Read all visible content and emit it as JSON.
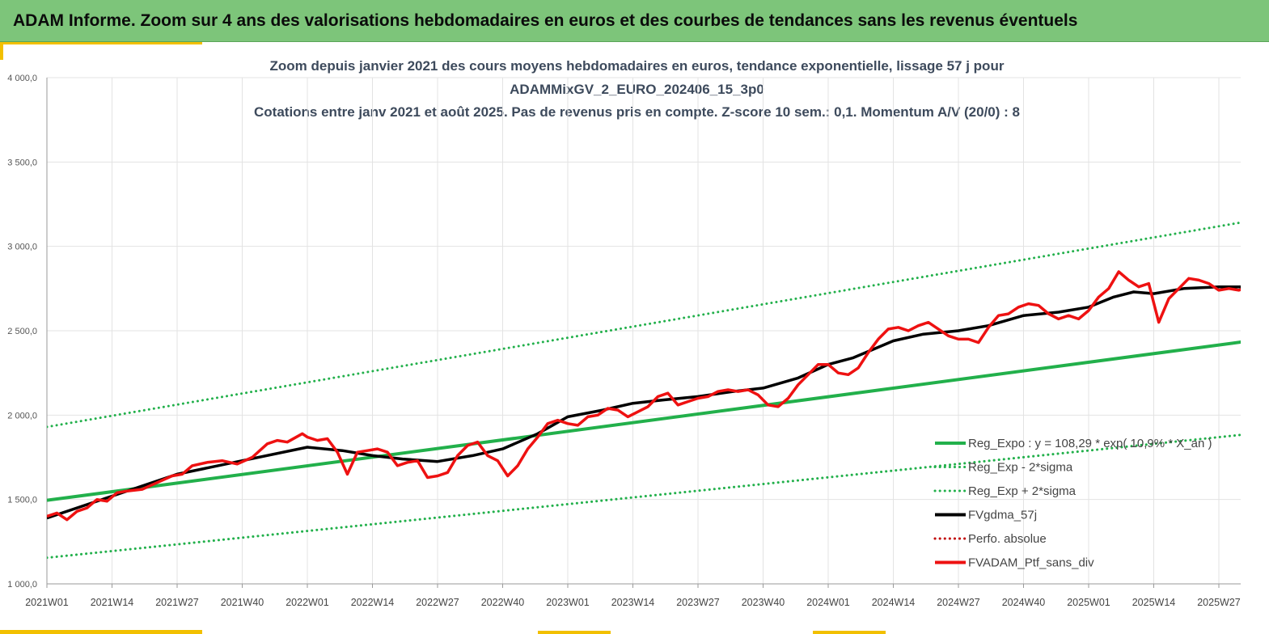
{
  "banner": {
    "title": "ADAM Informe. Zoom sur 4 ans des valorisations hebdomadaires en euros et des courbes de tendances sans les revenus éventuels",
    "color": "#7dc57a"
  },
  "chart_data": {
    "type": "line",
    "title_lines": [
      "Zoom depuis janvier 2021 des cours moyens hebdomadaires  en euros, tendance exponentielle, lissage 57 j pour",
      "ADAMMixGV_2_EURO_202406_15_3p0",
      "Cotations  entre janv 2021 et août 2025. Pas de revenus pris en compte. Z-score 10 sem.: 0,1. Momentum A/V (20/0) : 8"
    ],
    "xlabel": "",
    "ylabel": "",
    "ylim": [
      1000,
      4000
    ],
    "y_ticks": [
      "1 000,0",
      "1 500,0",
      "2 000,0",
      "2 500,0",
      "3 000,0",
      "3 500,0",
      "4 000,0"
    ],
    "x_tick_labels": [
      "2021W01",
      "2021W14",
      "2021W27",
      "2021W40",
      "2022W01",
      "2022W14",
      "2022W27",
      "2022W40",
      "2023W01",
      "2023W14",
      "2023W27",
      "2023W40",
      "2024W01",
      "2024W14",
      "2024W27",
      "2024W40",
      "2025W01",
      "2025W14",
      "2025W27"
    ],
    "grid": true,
    "legend_position": "bottom-right",
    "series": [
      {
        "name": "Reg_Expo : y = 108,29 * exp( 10,9% * X_an )",
        "color": "#22b04b",
        "style": "solid",
        "x": [
          "2021W01",
          "2025W37"
        ],
        "values": [
          1495,
          2455
        ]
      },
      {
        "name": "Reg_Exp - 2*sigma",
        "color": "#22b04b",
        "style": "dotted",
        "x": [
          "2021W01",
          "2025W37"
        ],
        "values": [
          1155,
          1900
        ]
      },
      {
        "name": "Reg_Exp + 2*sigma",
        "color": "#22b04b",
        "style": "dotted",
        "x": [
          "2021W01",
          "2025W37"
        ],
        "values": [
          1930,
          3170
        ]
      },
      {
        "name": "FVgdma_57j",
        "color": "#000000",
        "style": "solid",
        "x": [
          "2021W01",
          "2021W14",
          "2021W27",
          "2021W40",
          "2022W01",
          "2022W08",
          "2022W14",
          "2022W20",
          "2022W27",
          "2022W34",
          "2022W40",
          "2022W47",
          "2023W01",
          "2023W08",
          "2023W14",
          "2023W20",
          "2023W27",
          "2023W34",
          "2023W40",
          "2023W47",
          "2024W01",
          "2024W06",
          "2024W10",
          "2024W14",
          "2024W20",
          "2024W27",
          "2024W33",
          "2024W40",
          "2024W47",
          "2025W01",
          "2025W06",
          "2025W10",
          "2025W14",
          "2025W20",
          "2025W27",
          "2025W37"
        ],
        "values": [
          1390,
          1520,
          1650,
          1730,
          1810,
          1790,
          1760,
          1740,
          1725,
          1760,
          1800,
          1890,
          1990,
          2030,
          2070,
          2090,
          2110,
          2140,
          2160,
          2220,
          2300,
          2340,
          2390,
          2440,
          2480,
          2500,
          2530,
          2590,
          2610,
          2640,
          2700,
          2730,
          2720,
          2750,
          2760,
          2760
        ]
      },
      {
        "name": "Perfo. absolue",
        "color": "#c00000",
        "style": "dotted",
        "x": [],
        "values": []
      },
      {
        "name": "FVADAM_Ptf_sans_div",
        "color": "#ee1111",
        "style": "solid",
        "x": [
          "2021W01",
          "2021W03",
          "2021W05",
          "2021W07",
          "2021W09",
          "2021W11",
          "2021W13",
          "2021W15",
          "2021W17",
          "2021W20",
          "2021W23",
          "2021W26",
          "2021W28",
          "2021W30",
          "2021W33",
          "2021W36",
          "2021W39",
          "2021W42",
          "2021W45",
          "2021W47",
          "2021W49",
          "2021W52",
          "2022W01",
          "2022W03",
          "2022W05",
          "2022W07",
          "2022W09",
          "2022W11",
          "2022W13",
          "2022W15",
          "2022W17",
          "2022W19",
          "2022W21",
          "2022W23",
          "2022W25",
          "2022W27",
          "2022W29",
          "2022W31",
          "2022W33",
          "2022W35",
          "2022W37",
          "2022W39",
          "2022W41",
          "2022W43",
          "2022W45",
          "2022W47",
          "2022W49",
          "2022W51",
          "2023W01",
          "2023W03",
          "2023W05",
          "2023W07",
          "2023W09",
          "2023W11",
          "2023W13",
          "2023W15",
          "2023W17",
          "2023W19",
          "2023W21",
          "2023W23",
          "2023W25",
          "2023W27",
          "2023W29",
          "2023W31",
          "2023W33",
          "2023W35",
          "2023W37",
          "2023W39",
          "2023W41",
          "2023W43",
          "2023W45",
          "2023W47",
          "2023W49",
          "2023W51",
          "2024W01",
          "2024W03",
          "2024W05",
          "2024W07",
          "2024W09",
          "2024W11",
          "2024W13",
          "2024W15",
          "2024W17",
          "2024W19",
          "2024W21",
          "2024W23",
          "2024W25",
          "2024W27",
          "2024W29",
          "2024W31",
          "2024W33",
          "2024W35",
          "2024W37",
          "2024W39",
          "2024W41",
          "2024W43",
          "2024W45",
          "2024W47",
          "2024W49",
          "2024W51",
          "2025W01",
          "2025W03",
          "2025W05",
          "2025W07",
          "2025W09",
          "2025W11",
          "2025W13",
          "2025W15",
          "2025W17",
          "2025W19",
          "2025W21",
          "2025W23",
          "2025W25",
          "2025W27",
          "2025W29",
          "2025W31",
          "2025W33",
          "2025W37"
        ],
        "values": [
          1400,
          1420,
          1380,
          1430,
          1450,
          1500,
          1490,
          1540,
          1550,
          1560,
          1600,
          1640,
          1650,
          1700,
          1720,
          1730,
          1710,
          1750,
          1830,
          1850,
          1840,
          1890,
          1870,
          1850,
          1860,
          1780,
          1650,
          1780,
          1790,
          1800,
          1780,
          1700,
          1720,
          1730,
          1630,
          1640,
          1660,
          1760,
          1820,
          1840,
          1760,
          1730,
          1640,
          1700,
          1800,
          1870,
          1950,
          1970,
          1950,
          1940,
          1990,
          2000,
          2040,
          2030,
          1990,
          2020,
          2050,
          2110,
          2130,
          2060,
          2080,
          2100,
          2110,
          2140,
          2150,
          2140,
          2150,
          2120,
          2060,
          2050,
          2100,
          2180,
          2240,
          2300,
          2300,
          2250,
          2240,
          2280,
          2370,
          2450,
          2510,
          2520,
          2500,
          2530,
          2550,
          2510,
          2470,
          2450,
          2450,
          2430,
          2520,
          2590,
          2600,
          2640,
          2660,
          2650,
          2600,
          2570,
          2590,
          2570,
          2620,
          2700,
          2750,
          2850,
          2800,
          2760,
          2780,
          2550,
          2690,
          2750,
          2810,
          2800,
          2780,
          2740,
          2750,
          2740,
          2760,
          2760
        ]
      }
    ]
  }
}
